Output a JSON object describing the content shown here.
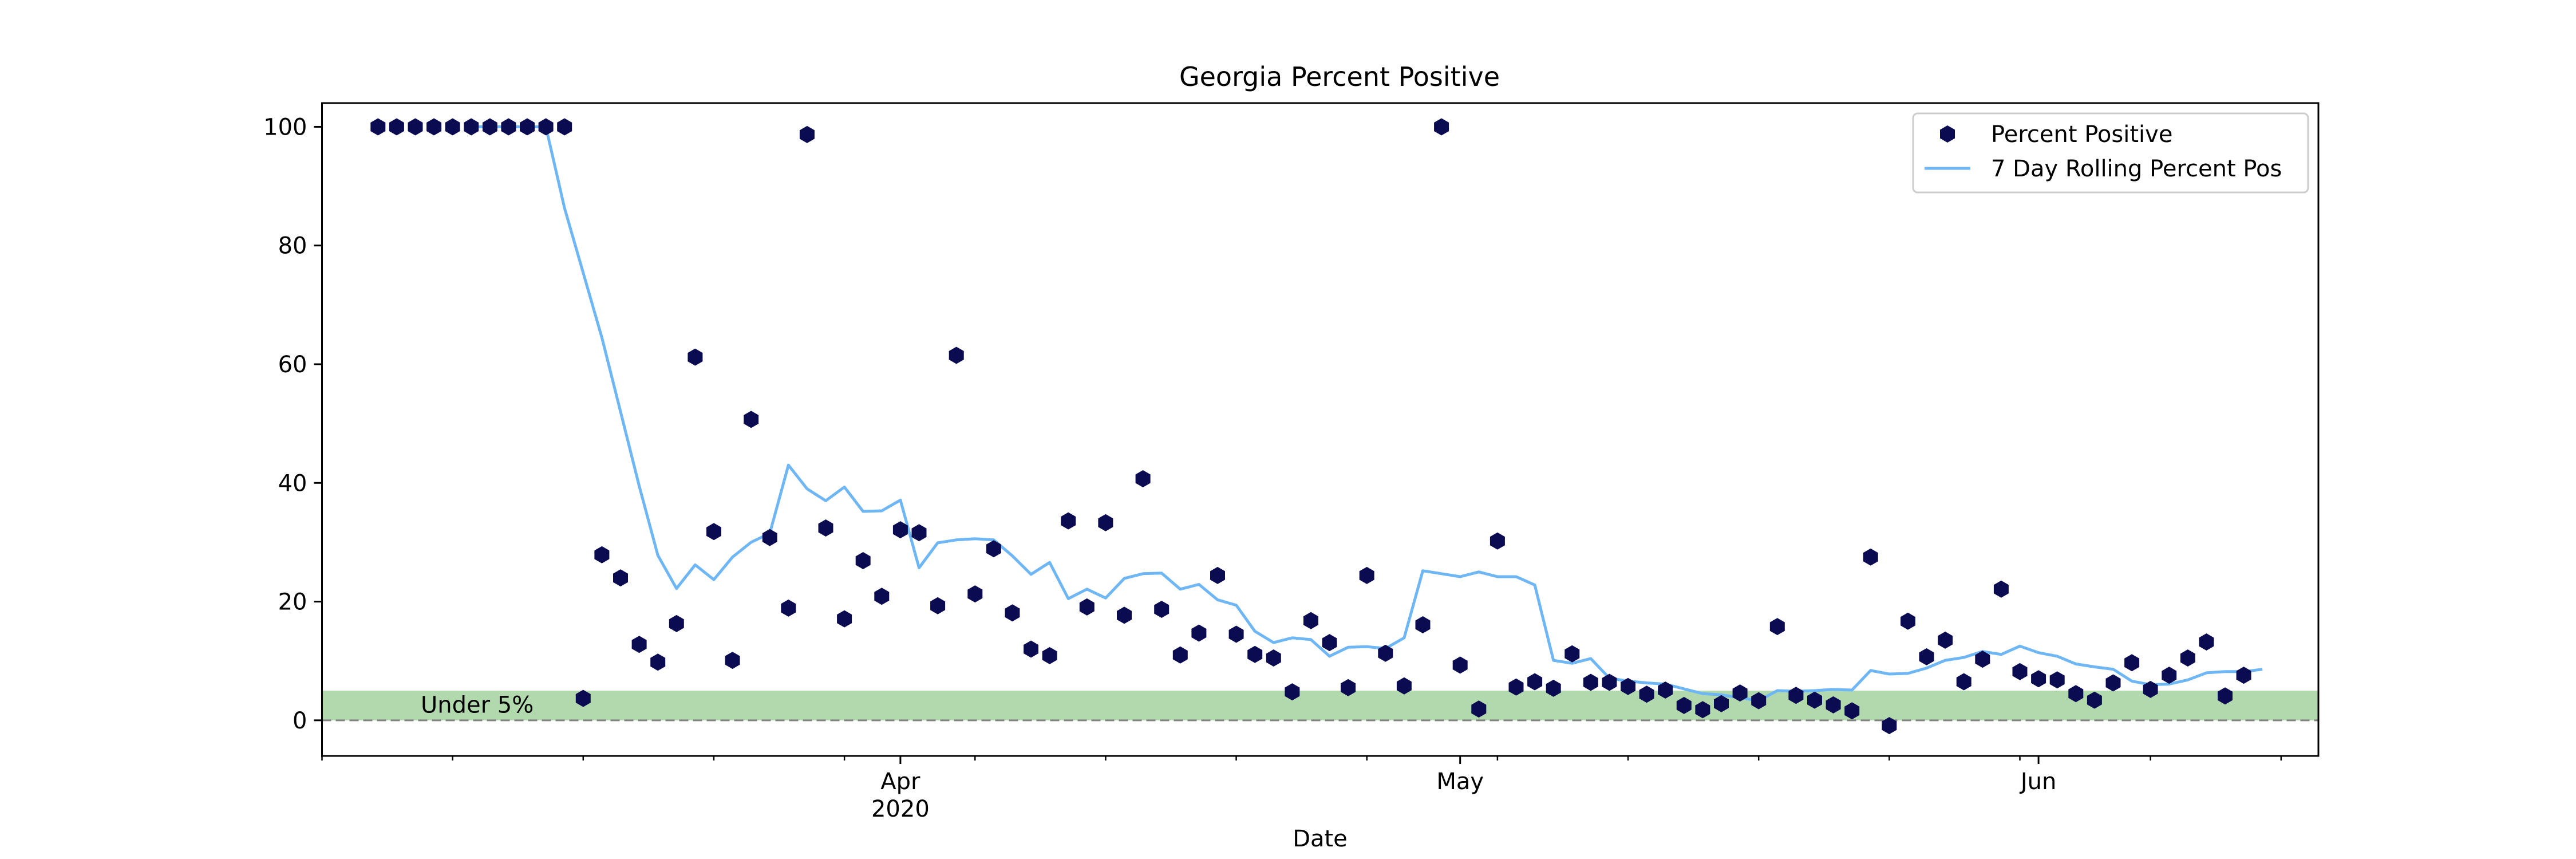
{
  "chart_data": {
    "type": "scatter",
    "title": "Georgia Percent Positive",
    "xlabel": "Date",
    "ylabel": "",
    "xlim": [
      "2020-03-01",
      "2020-06-16"
    ],
    "ylim": [
      -6,
      104
    ],
    "y_ticks": [
      0,
      20,
      40,
      60,
      80,
      100
    ],
    "x_ticks": [
      {
        "date": "2020-04-01",
        "label": "Apr",
        "sublabel": "2020"
      },
      {
        "date": "2020-05-01",
        "label": "May",
        "sublabel": ""
      },
      {
        "date": "2020-06-01",
        "label": "Jun",
        "sublabel": ""
      }
    ],
    "x_minor_tick_dates": [
      "2020-03-01",
      "2020-03-08",
      "2020-03-15",
      "2020-03-22",
      "2020-03-29",
      "2020-04-05",
      "2020-04-12",
      "2020-04-19",
      "2020-04-26",
      "2020-05-03",
      "2020-05-10",
      "2020-05-17",
      "2020-05-24",
      "2020-05-31",
      "2020-06-07",
      "2020-06-14"
    ],
    "grid": false,
    "legend_position": "top-right",
    "band": {
      "label": "Under 5%",
      "y_min": 0,
      "y_max": 5,
      "color": "#b2d9ae"
    },
    "reference_line": {
      "y": 0,
      "style": "dashed",
      "color": "#808080"
    },
    "series": [
      {
        "name": "Percent Positive",
        "kind": "scatter",
        "color": "#0b0b52",
        "points": [
          [
            "2020-03-04",
            100
          ],
          [
            "2020-03-05",
            100
          ],
          [
            "2020-03-06",
            100
          ],
          [
            "2020-03-07",
            100
          ],
          [
            "2020-03-08",
            100
          ],
          [
            "2020-03-09",
            100
          ],
          [
            "2020-03-10",
            100
          ],
          [
            "2020-03-11",
            100
          ],
          [
            "2020-03-12",
            100
          ],
          [
            "2020-03-13",
            100
          ],
          [
            "2020-03-14",
            100
          ],
          [
            "2020-03-15",
            3.7
          ],
          [
            "2020-03-16",
            27.9
          ],
          [
            "2020-03-17",
            24
          ],
          [
            "2020-03-18",
            12.8
          ],
          [
            "2020-03-19",
            9.8
          ],
          [
            "2020-03-20",
            16.3
          ],
          [
            "2020-03-21",
            61.2
          ],
          [
            "2020-03-22",
            31.8
          ],
          [
            "2020-03-23",
            10.1
          ],
          [
            "2020-03-24",
            50.7
          ],
          [
            "2020-03-25",
            30.8
          ],
          [
            "2020-03-26",
            18.9
          ],
          [
            "2020-03-27",
            98.7
          ],
          [
            "2020-03-28",
            32.4
          ],
          [
            "2020-03-29",
            17.1
          ],
          [
            "2020-03-30",
            26.9
          ],
          [
            "2020-03-31",
            20.9
          ],
          [
            "2020-04-01",
            32.1
          ],
          [
            "2020-04-02",
            31.6
          ],
          [
            "2020-04-03",
            19.3
          ],
          [
            "2020-04-04",
            61.5
          ],
          [
            "2020-04-05",
            21.3
          ],
          [
            "2020-04-06",
            28.9
          ],
          [
            "2020-04-07",
            18.1
          ],
          [
            "2020-04-08",
            12
          ],
          [
            "2020-04-09",
            10.9
          ],
          [
            "2020-04-10",
            33.6
          ],
          [
            "2020-04-11",
            19.1
          ],
          [
            "2020-04-12",
            33.3
          ],
          [
            "2020-04-13",
            17.7
          ],
          [
            "2020-04-14",
            40.7
          ],
          [
            "2020-04-15",
            18.7
          ],
          [
            "2020-04-16",
            11
          ],
          [
            "2020-04-17",
            14.7
          ],
          [
            "2020-04-18",
            24.4
          ],
          [
            "2020-04-19",
            14.5
          ],
          [
            "2020-04-20",
            11.1
          ],
          [
            "2020-04-21",
            10.5
          ],
          [
            "2020-04-22",
            4.8
          ],
          [
            "2020-04-23",
            16.8
          ],
          [
            "2020-04-24",
            13.1
          ],
          [
            "2020-04-25",
            5.5
          ],
          [
            "2020-04-26",
            24.4
          ],
          [
            "2020-04-27",
            11.3
          ],
          [
            "2020-04-28",
            5.8
          ],
          [
            "2020-04-29",
            16.1
          ],
          [
            "2020-04-30",
            100
          ],
          [
            "2020-05-01",
            9.3
          ],
          [
            "2020-05-02",
            1.9
          ],
          [
            "2020-05-03",
            30.2
          ],
          [
            "2020-05-04",
            5.6
          ],
          [
            "2020-05-05",
            6.5
          ],
          [
            "2020-05-06",
            5.4
          ],
          [
            "2020-05-07",
            11.2
          ],
          [
            "2020-05-08",
            6.4
          ],
          [
            "2020-05-09",
            6.4
          ],
          [
            "2020-05-10",
            5.7
          ],
          [
            "2020-05-11",
            4.4
          ],
          [
            "2020-05-12",
            5.1
          ],
          [
            "2020-05-13",
            2.5
          ],
          [
            "2020-05-14",
            1.8
          ],
          [
            "2020-05-15",
            2.8
          ],
          [
            "2020-05-16",
            4.6
          ],
          [
            "2020-05-17",
            3.3
          ],
          [
            "2020-05-18",
            15.8
          ],
          [
            "2020-05-19",
            4.2
          ],
          [
            "2020-05-20",
            3.4
          ],
          [
            "2020-05-21",
            2.6
          ],
          [
            "2020-05-22",
            1.6
          ],
          [
            "2020-05-23",
            27.5
          ],
          [
            "2020-05-24",
            -0.9
          ],
          [
            "2020-05-25",
            16.7
          ],
          [
            "2020-05-26",
            10.7
          ],
          [
            "2020-05-27",
            13.5
          ],
          [
            "2020-05-28",
            6.5
          ],
          [
            "2020-05-29",
            10.3
          ],
          [
            "2020-05-30",
            22.1
          ],
          [
            "2020-05-31",
            8.2
          ],
          [
            "2020-06-01",
            7
          ],
          [
            "2020-06-02",
            6.8
          ],
          [
            "2020-06-03",
            4.5
          ],
          [
            "2020-06-04",
            3.4
          ],
          [
            "2020-06-05",
            6.3
          ],
          [
            "2020-06-06",
            9.7
          ],
          [
            "2020-06-07",
            5.2
          ],
          [
            "2020-06-08",
            7.6
          ],
          [
            "2020-06-09",
            10.5
          ],
          [
            "2020-06-10",
            13.2
          ],
          [
            "2020-06-11",
            4.1
          ],
          [
            "2020-06-12",
            7.6
          ]
        ]
      },
      {
        "name": "7 Day Rolling Percent Pos",
        "kind": "line",
        "color": "#6fb6f5",
        "points": [
          [
            "2020-03-09",
            100
          ],
          [
            "2020-03-10",
            100
          ],
          [
            "2020-03-11",
            100
          ],
          [
            "2020-03-12",
            100
          ],
          [
            "2020-03-13",
            100
          ],
          [
            "2020-03-14",
            86.3
          ],
          [
            "2020-03-15",
            75.4
          ],
          [
            "2020-03-16",
            64.5
          ],
          [
            "2020-03-17",
            52
          ],
          [
            "2020-03-18",
            39.5
          ],
          [
            "2020-03-19",
            27.8
          ],
          [
            "2020-03-20",
            22.2
          ],
          [
            "2020-03-21",
            26.2
          ],
          [
            "2020-03-22",
            23.7
          ],
          [
            "2020-03-23",
            27.5
          ],
          [
            "2020-03-24",
            30
          ],
          [
            "2020-03-25",
            31.5
          ],
          [
            "2020-03-26",
            43
          ],
          [
            "2020-03-27",
            39
          ],
          [
            "2020-03-28",
            37
          ],
          [
            "2020-03-29",
            39.3
          ],
          [
            "2020-03-30",
            35.2
          ],
          [
            "2020-03-31",
            35.3
          ],
          [
            "2020-04-01",
            37.1
          ],
          [
            "2020-04-02",
            25.7
          ],
          [
            "2020-04-03",
            29.9
          ],
          [
            "2020-04-04",
            30.4
          ],
          [
            "2020-04-05",
            30.6
          ],
          [
            "2020-04-06",
            30.4
          ],
          [
            "2020-04-07",
            27.7
          ],
          [
            "2020-04-08",
            24.6
          ],
          [
            "2020-04-09",
            26.6
          ],
          [
            "2020-04-10",
            20.5
          ],
          [
            "2020-04-11",
            22.1
          ],
          [
            "2020-04-12",
            20.6
          ],
          [
            "2020-04-13",
            23.9
          ],
          [
            "2020-04-14",
            24.7
          ],
          [
            "2020-04-15",
            24.8
          ],
          [
            "2020-04-16",
            22.1
          ],
          [
            "2020-04-17",
            22.9
          ],
          [
            "2020-04-18",
            20.3
          ],
          [
            "2020-04-19",
            19.4
          ],
          [
            "2020-04-20",
            15
          ],
          [
            "2020-04-21",
            13.1
          ],
          [
            "2020-04-22",
            13.9
          ],
          [
            "2020-04-23",
            13.6
          ],
          [
            "2020-04-24",
            10.8
          ],
          [
            "2020-04-25",
            12.3
          ],
          [
            "2020-04-26",
            12.4
          ],
          [
            "2020-04-27",
            12.1
          ],
          [
            "2020-04-28",
            13.9
          ],
          [
            "2020-04-29",
            25.2
          ],
          [
            "2020-04-30",
            24.7
          ],
          [
            "2020-05-01",
            24.2
          ],
          [
            "2020-05-02",
            25
          ],
          [
            "2020-05-03",
            24.2
          ],
          [
            "2020-05-04",
            24.2
          ],
          [
            "2020-05-05",
            22.8
          ],
          [
            "2020-05-06",
            10.1
          ],
          [
            "2020-05-07",
            9.6
          ],
          [
            "2020-05-08",
            10.4
          ],
          [
            "2020-05-09",
            7.1
          ],
          [
            "2020-05-10",
            6.6
          ],
          [
            "2020-05-11",
            6.3
          ],
          [
            "2020-05-12",
            6.1
          ],
          [
            "2020-05-13",
            5.3
          ],
          [
            "2020-05-14",
            4.5
          ],
          [
            "2020-05-15",
            4.3
          ],
          [
            "2020-05-16",
            3.8
          ],
          [
            "2020-05-17",
            3.3
          ],
          [
            "2020-05-18",
            5
          ],
          [
            "2020-05-19",
            4.9
          ],
          [
            "2020-05-20",
            5
          ],
          [
            "2020-05-21",
            5.2
          ],
          [
            "2020-05-22",
            5.1
          ],
          [
            "2020-05-23",
            8.4
          ],
          [
            "2020-05-24",
            7.8
          ],
          [
            "2020-05-25",
            7.9
          ],
          [
            "2020-05-26",
            8.8
          ],
          [
            "2020-05-27",
            10.1
          ],
          [
            "2020-05-28",
            10.6
          ],
          [
            "2020-05-29",
            11.6
          ],
          [
            "2020-05-30",
            11.1
          ],
          [
            "2020-05-31",
            12.5
          ],
          [
            "2020-06-01",
            11.4
          ],
          [
            "2020-06-02",
            10.8
          ],
          [
            "2020-06-03",
            9.5
          ],
          [
            "2020-06-04",
            9
          ],
          [
            "2020-06-05",
            8.6
          ],
          [
            "2020-06-06",
            6.6
          ],
          [
            "2020-06-07",
            6
          ],
          [
            "2020-06-08",
            6.1
          ],
          [
            "2020-06-09",
            6.8
          ],
          [
            "2020-06-10",
            8
          ],
          [
            "2020-06-11",
            8.2
          ],
          [
            "2020-06-12",
            8.2
          ],
          [
            "2020-06-13",
            8.6
          ]
        ]
      }
    ]
  }
}
